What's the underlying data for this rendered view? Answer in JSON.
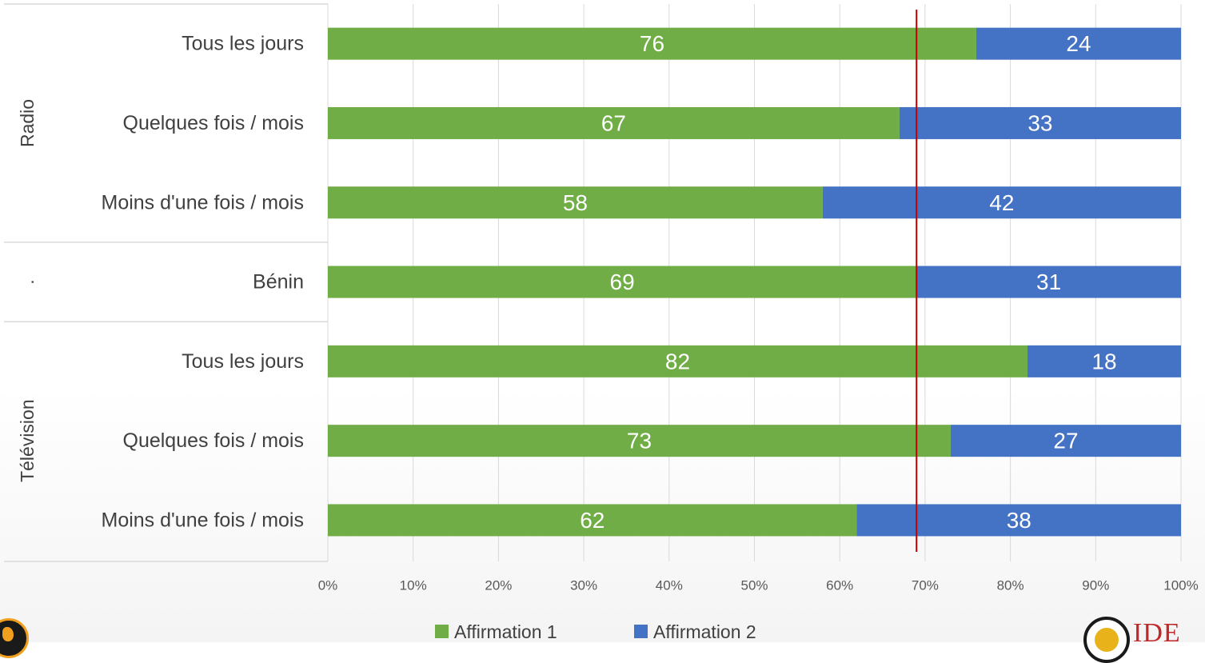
{
  "chart_data": {
    "type": "bar",
    "orientation": "horizontal",
    "stacked": "100%",
    "groups": [
      {
        "name": "Radio",
        "categories": [
          "Tous les jours",
          "Quelques fois / mois",
          "Moins d'une fois / mois"
        ]
      },
      {
        "name": ".",
        "categories": [
          "Bénin"
        ]
      },
      {
        "name": "Télévision",
        "categories": [
          "Tous les jours",
          "Quelques fois / mois",
          "Moins d'une fois / mois"
        ]
      }
    ],
    "categories": [
      "Tous les jours",
      "Quelques fois / mois",
      "Moins d'une fois / mois",
      "Bénin",
      "Tous les jours",
      "Quelques fois / mois",
      "Moins d'une fois / mois"
    ],
    "series": [
      {
        "name": "Affirmation 1",
        "color": "#70ad47",
        "values": [
          76,
          67,
          58,
          69,
          82,
          73,
          62
        ]
      },
      {
        "name": "Affirmation 2",
        "color": "#4472c4",
        "values": [
          24,
          33,
          42,
          31,
          18,
          27,
          38
        ]
      }
    ],
    "x_ticks": [
      "0%",
      "10%",
      "20%",
      "30%",
      "40%",
      "50%",
      "60%",
      "70%",
      "80%",
      "90%",
      "100%"
    ],
    "xlim": [
      0,
      100
    ],
    "reference_line": {
      "value": 69,
      "color": "#c00000"
    },
    "grid": true,
    "legend_position": "bottom"
  }
}
